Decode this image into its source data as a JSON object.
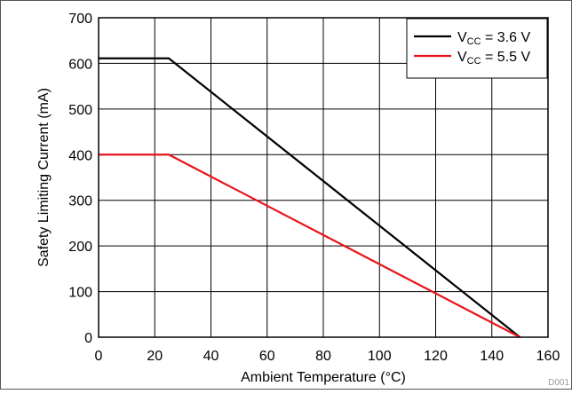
{
  "chart_data": {
    "type": "line",
    "title": "",
    "xlabel": "Ambient Temperature (°C)",
    "ylabel": "Safety Limiting Current (mA)",
    "xlim": [
      0,
      160
    ],
    "ylim": [
      0,
      700
    ],
    "x_ticks": [
      0,
      20,
      40,
      60,
      80,
      100,
      120,
      140,
      160
    ],
    "y_ticks": [
      0,
      100,
      200,
      300,
      400,
      500,
      600,
      700
    ],
    "grid": true,
    "legend_position": "top-right",
    "series": [
      {
        "name_main": "V",
        "name_sub": "CC",
        "name_rest": " = 3.6 V",
        "color": "#000000",
        "points": [
          [
            0,
            611
          ],
          [
            25,
            611
          ],
          [
            150,
            0
          ]
        ]
      },
      {
        "name_main": "V",
        "name_sub": "CC",
        "name_rest": " = 5.5 V",
        "color": "#e8141a",
        "points": [
          [
            0,
            400
          ],
          [
            25,
            400
          ],
          [
            150,
            0
          ]
        ]
      }
    ]
  },
  "figure_id": "D001"
}
